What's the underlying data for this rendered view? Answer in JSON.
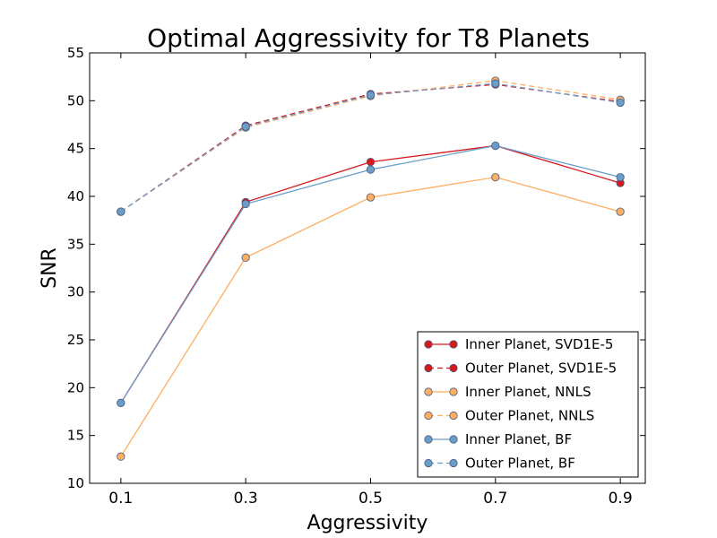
{
  "chart_data": {
    "type": "line",
    "title": "Optimal Aggressivity for T8 Planets",
    "xlabel": "Aggressivity",
    "ylabel": "SNR",
    "x": [
      0.1,
      0.3,
      0.5,
      0.7,
      0.9
    ],
    "x_tick_labels": [
      "0.1",
      "0.3",
      "0.5",
      "0.7",
      "0.9"
    ],
    "xlim": [
      0.05,
      0.94
    ],
    "ylim": [
      10,
      55
    ],
    "y_ticks": [
      10,
      15,
      20,
      25,
      30,
      35,
      40,
      45,
      50,
      55
    ],
    "y_tick_labels": [
      "10",
      "15",
      "20",
      "25",
      "30",
      "35",
      "40",
      "45",
      "50",
      "55"
    ],
    "grid": false,
    "legend_position": "lower-right",
    "series": [
      {
        "name": "Inner Planet, SVD1E-5",
        "color": "#d7191c",
        "style": "solid",
        "values": [
          18.4,
          39.4,
          43.6,
          45.3,
          41.4
        ]
      },
      {
        "name": "Outer Planet, SVD1E-5",
        "color": "#d7191c",
        "style": "dashed",
        "values": [
          38.4,
          47.4,
          50.7,
          51.7,
          49.9
        ]
      },
      {
        "name": "Inner Planet, NNLS",
        "color": "#fdae61",
        "style": "solid",
        "values": [
          12.8,
          33.6,
          39.9,
          42.0,
          38.4
        ]
      },
      {
        "name": "Outer Planet, NNLS",
        "color": "#fdae61",
        "style": "dashed",
        "values": [
          38.4,
          47.2,
          50.5,
          52.1,
          50.1
        ]
      },
      {
        "name": "Inner Planet, BF",
        "color": "#6a9ec9",
        "style": "solid",
        "values": [
          18.4,
          39.2,
          42.8,
          45.3,
          42.0
        ]
      },
      {
        "name": "Outer Planet, BF",
        "color": "#6a9ec9",
        "style": "dashed",
        "values": [
          38.4,
          47.3,
          50.6,
          51.8,
          49.8
        ]
      }
    ]
  }
}
